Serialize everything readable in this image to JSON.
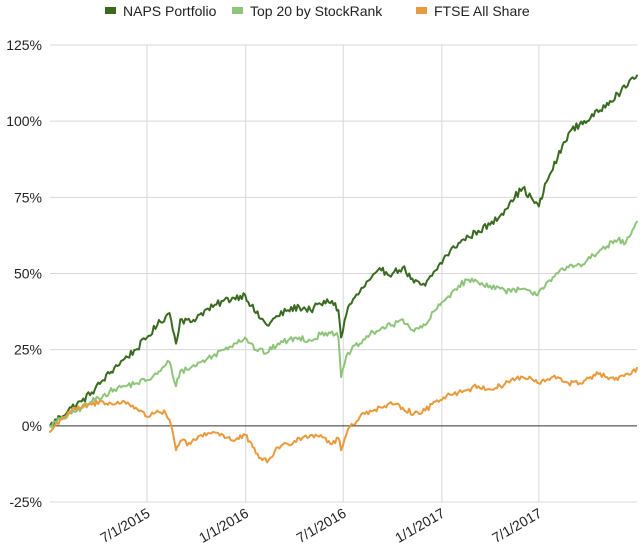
{
  "chart_data": {
    "type": "line",
    "title": "",
    "xlabel": "",
    "ylabel": "",
    "x_ticks": [
      "7/1/2015",
      "1/1/2016",
      "7/1/2016",
      "1/1/2017",
      "7/1/2017"
    ],
    "y_ticks": [
      "-25%",
      "0%",
      "25%",
      "50%",
      "75%",
      "100%",
      "125%"
    ],
    "ylim": [
      -25,
      125
    ],
    "xlim": [
      "2015-01-01",
      "2017-12-31"
    ],
    "legend_position": "top",
    "grid": true,
    "series": [
      {
        "name": "NAPS Portfolio",
        "color": "#386b1f",
        "points": [
          [
            "2015-01-01",
            0
          ],
          [
            "2015-01-20",
            3
          ],
          [
            "2015-02-10",
            6
          ],
          [
            "2015-03-01",
            8
          ],
          [
            "2015-03-20",
            11
          ],
          [
            "2015-04-10",
            15
          ],
          [
            "2015-05-01",
            19
          ],
          [
            "2015-05-20",
            22
          ],
          [
            "2015-06-10",
            25
          ],
          [
            "2015-07-01",
            29
          ],
          [
            "2015-07-20",
            33
          ],
          [
            "2015-08-05",
            36
          ],
          [
            "2015-08-12",
            37
          ],
          [
            "2015-08-24",
            27
          ],
          [
            "2015-09-01",
            35
          ],
          [
            "2015-09-20",
            34
          ],
          [
            "2015-10-10",
            37
          ],
          [
            "2015-11-01",
            39
          ],
          [
            "2015-11-20",
            41
          ],
          [
            "2015-12-10",
            42
          ],
          [
            "2015-12-31",
            43
          ],
          [
            "2016-01-20",
            37
          ],
          [
            "2016-02-10",
            33
          ],
          [
            "2016-03-01",
            36
          ],
          [
            "2016-03-20",
            38
          ],
          [
            "2016-04-10",
            39
          ],
          [
            "2016-05-01",
            38
          ],
          [
            "2016-05-20",
            40
          ],
          [
            "2016-06-10",
            41
          ],
          [
            "2016-06-22",
            38
          ],
          [
            "2016-06-27",
            29
          ],
          [
            "2016-07-10",
            39
          ],
          [
            "2016-08-01",
            44
          ],
          [
            "2016-08-20",
            48
          ],
          [
            "2016-09-10",
            51
          ],
          [
            "2016-10-01",
            50
          ],
          [
            "2016-10-20",
            52
          ],
          [
            "2016-11-10",
            47
          ],
          [
            "2016-12-01",
            46
          ],
          [
            "2016-12-20",
            51
          ],
          [
            "2017-01-10",
            56
          ],
          [
            "2017-02-01",
            60
          ],
          [
            "2017-02-20",
            62
          ],
          [
            "2017-03-10",
            64
          ],
          [
            "2017-04-01",
            66
          ],
          [
            "2017-04-20",
            69
          ],
          [
            "2017-05-10",
            74
          ],
          [
            "2017-06-01",
            78
          ],
          [
            "2017-06-20",
            74
          ],
          [
            "2017-07-01",
            72
          ],
          [
            "2017-07-15",
            80
          ],
          [
            "2017-08-05",
            88
          ],
          [
            "2017-08-25",
            96
          ],
          [
            "2017-09-15",
            99
          ],
          [
            "2017-10-05",
            101
          ],
          [
            "2017-10-20",
            103
          ],
          [
            "2017-11-05",
            106
          ],
          [
            "2017-11-25",
            109
          ],
          [
            "2017-12-10",
            111
          ],
          [
            "2017-12-20",
            114
          ],
          [
            "2017-12-31",
            115
          ]
        ]
      },
      {
        "name": "Top 20 by StockRank",
        "color": "#8ec57a",
        "points": [
          [
            "2015-01-01",
            0
          ],
          [
            "2015-01-20",
            2
          ],
          [
            "2015-02-10",
            4
          ],
          [
            "2015-03-01",
            6
          ],
          [
            "2015-03-20",
            8
          ],
          [
            "2015-04-10",
            10
          ],
          [
            "2015-05-01",
            12
          ],
          [
            "2015-05-20",
            13
          ],
          [
            "2015-06-10",
            14
          ],
          [
            "2015-07-01",
            15
          ],
          [
            "2015-07-20",
            17
          ],
          [
            "2015-08-05",
            20
          ],
          [
            "2015-08-12",
            21
          ],
          [
            "2015-08-24",
            13
          ],
          [
            "2015-09-01",
            18
          ],
          [
            "2015-09-20",
            19
          ],
          [
            "2015-10-10",
            21
          ],
          [
            "2015-11-01",
            23
          ],
          [
            "2015-11-20",
            25
          ],
          [
            "2015-12-10",
            27
          ],
          [
            "2015-12-31",
            29
          ],
          [
            "2016-01-20",
            25
          ],
          [
            "2016-02-10",
            24
          ],
          [
            "2016-03-01",
            27
          ],
          [
            "2016-03-20",
            28
          ],
          [
            "2016-04-10",
            29
          ],
          [
            "2016-05-01",
            28
          ],
          [
            "2016-05-20",
            30
          ],
          [
            "2016-06-10",
            31
          ],
          [
            "2016-06-22",
            29
          ],
          [
            "2016-06-27",
            16
          ],
          [
            "2016-07-10",
            24
          ],
          [
            "2016-08-01",
            27
          ],
          [
            "2016-08-20",
            30
          ],
          [
            "2016-09-10",
            32
          ],
          [
            "2016-10-01",
            33
          ],
          [
            "2016-10-20",
            35
          ],
          [
            "2016-11-10",
            31
          ],
          [
            "2016-12-01",
            33
          ],
          [
            "2016-12-20",
            38
          ],
          [
            "2017-01-10",
            42
          ],
          [
            "2017-02-01",
            46
          ],
          [
            "2017-02-20",
            48
          ],
          [
            "2017-03-10",
            47
          ],
          [
            "2017-04-01",
            46
          ],
          [
            "2017-04-20",
            45
          ],
          [
            "2017-05-10",
            44
          ],
          [
            "2017-06-01",
            45
          ],
          [
            "2017-06-20",
            43
          ],
          [
            "2017-07-01",
            44
          ],
          [
            "2017-07-15",
            47
          ],
          [
            "2017-08-05",
            50
          ],
          [
            "2017-08-25",
            52
          ],
          [
            "2017-09-15",
            53
          ],
          [
            "2017-10-05",
            55
          ],
          [
            "2017-10-20",
            57
          ],
          [
            "2017-11-05",
            59
          ],
          [
            "2017-11-25",
            61
          ],
          [
            "2017-12-10",
            60
          ],
          [
            "2017-12-20",
            63
          ],
          [
            "2017-12-31",
            67
          ]
        ]
      },
      {
        "name": "FTSE All Share",
        "color": "#e99a3c",
        "points": [
          [
            "2015-01-01",
            -2
          ],
          [
            "2015-01-20",
            2
          ],
          [
            "2015-02-10",
            5
          ],
          [
            "2015-03-01",
            6
          ],
          [
            "2015-03-20",
            7
          ],
          [
            "2015-04-10",
            8
          ],
          [
            "2015-05-01",
            7
          ],
          [
            "2015-05-20",
            8
          ],
          [
            "2015-06-10",
            6
          ],
          [
            "2015-07-01",
            3
          ],
          [
            "2015-07-20",
            5
          ],
          [
            "2015-08-05",
            4
          ],
          [
            "2015-08-12",
            2
          ],
          [
            "2015-08-24",
            -8
          ],
          [
            "2015-09-01",
            -5
          ],
          [
            "2015-09-20",
            -6
          ],
          [
            "2015-10-10",
            -3
          ],
          [
            "2015-11-01",
            -2
          ],
          [
            "2015-11-20",
            -3
          ],
          [
            "2015-12-10",
            -5
          ],
          [
            "2015-12-31",
            -3
          ],
          [
            "2016-01-20",
            -9
          ],
          [
            "2016-02-10",
            -12
          ],
          [
            "2016-03-01",
            -7
          ],
          [
            "2016-03-20",
            -6
          ],
          [
            "2016-04-10",
            -4
          ],
          [
            "2016-05-01",
            -3
          ],
          [
            "2016-05-20",
            -3
          ],
          [
            "2016-06-10",
            -6
          ],
          [
            "2016-06-22",
            -4
          ],
          [
            "2016-06-27",
            -8
          ],
          [
            "2016-07-10",
            -1
          ],
          [
            "2016-08-01",
            3
          ],
          [
            "2016-08-20",
            5
          ],
          [
            "2016-09-10",
            6
          ],
          [
            "2016-10-01",
            7
          ],
          [
            "2016-10-20",
            6
          ],
          [
            "2016-11-10",
            4
          ],
          [
            "2016-12-01",
            5
          ],
          [
            "2016-12-20",
            8
          ],
          [
            "2017-01-10",
            10
          ],
          [
            "2017-02-01",
            11
          ],
          [
            "2017-02-20",
            12
          ],
          [
            "2017-03-10",
            13
          ],
          [
            "2017-04-01",
            12
          ],
          [
            "2017-04-20",
            13
          ],
          [
            "2017-05-10",
            15
          ],
          [
            "2017-06-01",
            16
          ],
          [
            "2017-06-20",
            15
          ],
          [
            "2017-07-01",
            14
          ],
          [
            "2017-07-15",
            15
          ],
          [
            "2017-08-05",
            16
          ],
          [
            "2017-08-25",
            14
          ],
          [
            "2017-09-15",
            14
          ],
          [
            "2017-10-05",
            16
          ],
          [
            "2017-10-20",
            17
          ],
          [
            "2017-11-05",
            16
          ],
          [
            "2017-11-25",
            15
          ],
          [
            "2017-12-10",
            17
          ],
          [
            "2017-12-20",
            17
          ],
          [
            "2017-12-31",
            19
          ]
        ]
      }
    ]
  }
}
